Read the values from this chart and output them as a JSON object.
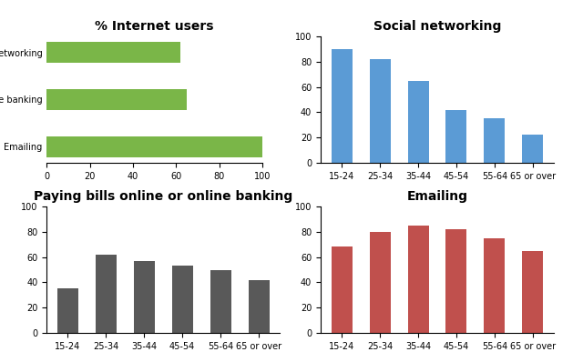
{
  "internet_users": {
    "title": "% Internet users",
    "categories": [
      "Emailing",
      "Paying bills online or online banking",
      "Social networking"
    ],
    "values": [
      100,
      65,
      62
    ],
    "color": "#7ab648",
    "xlim": [
      0,
      100
    ],
    "xticks": [
      0,
      20,
      40,
      60,
      80,
      100
    ]
  },
  "social_networking": {
    "title": "Social networking",
    "age_groups": [
      "15-24",
      "25-34",
      "35-44",
      "45-54",
      "55-64",
      "65 or over"
    ],
    "values": [
      90,
      82,
      65,
      42,
      35,
      22
    ],
    "color": "#5b9bd5",
    "ylim": [
      0,
      100
    ],
    "yticks": [
      0,
      20,
      40,
      60,
      80,
      100
    ]
  },
  "paying_bills": {
    "title": "Paying bills online or online banking",
    "age_groups": [
      "15-24",
      "25-34",
      "35-44",
      "45-54",
      "55-64",
      "65 or over"
    ],
    "values": [
      35,
      62,
      57,
      53,
      50,
      42
    ],
    "color": "#595959",
    "ylim": [
      0,
      100
    ],
    "yticks": [
      0,
      20,
      40,
      60,
      80,
      100
    ]
  },
  "emailing": {
    "title": "Emailing",
    "age_groups": [
      "15-24",
      "25-34",
      "35-44",
      "45-54",
      "55-64",
      "65 or over"
    ],
    "values": [
      68,
      80,
      85,
      82,
      75,
      65
    ],
    "color": "#c0504d",
    "ylim": [
      0,
      100
    ],
    "yticks": [
      0,
      20,
      40,
      60,
      80,
      100
    ]
  },
  "background_color": "#ffffff",
  "title_fontsize": 10,
  "tick_fontsize": 7
}
